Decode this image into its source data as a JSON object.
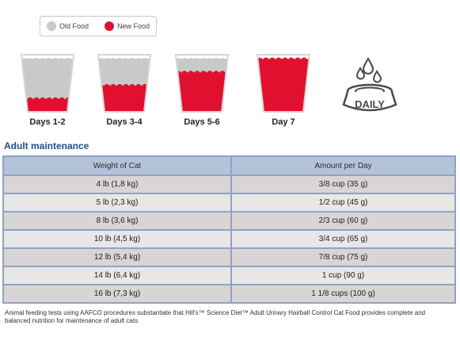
{
  "legend": {
    "old_label": "Old Food",
    "new_label": "New Food",
    "old_color": "#c9c9c9",
    "new_color": "#e0102e"
  },
  "transition": {
    "days": [
      {
        "label": "Days 1-2",
        "new_food_fraction": 0.25
      },
      {
        "label": "Days 3-4",
        "new_food_fraction": 0.5
      },
      {
        "label": "Days 5-6",
        "new_food_fraction": 0.75
      },
      {
        "label": "Day 7",
        "new_food_fraction": 1.0
      }
    ],
    "daily_label": "DAILY",
    "daily_icon": "water-bowl-icon"
  },
  "section_title": "Adult maintenance",
  "table": {
    "headers": [
      "Weight of Cat",
      "Amount per Day"
    ],
    "rows": [
      [
        "4 lb (1,8 kg)",
        "3/8 cup (35 g)"
      ],
      [
        "5 lb (2,3 kg)",
        "1/2 cup (45 g)"
      ],
      [
        "8 lb (3,6 kg)",
        "2/3 cup (60 g)"
      ],
      [
        "10 lb (4,5 kg)",
        "3/4 cup (65 g)"
      ],
      [
        "12 lb (5,4 kg)",
        "7/8 cup (75 g)"
      ],
      [
        "14 lb (6,4 kg)",
        "1 cup (90 g)"
      ],
      [
        "16 lb (7,3 kg)",
        "1 1/8 cups (100 g)"
      ]
    ]
  },
  "note": "Animal feeding tests using AAFCO procedures substantiate that Hill's™ Science Diet™ Adult Urinary Hairball Control Cat Food provides complete and balanced nutrition for maintenance of adult cats"
}
